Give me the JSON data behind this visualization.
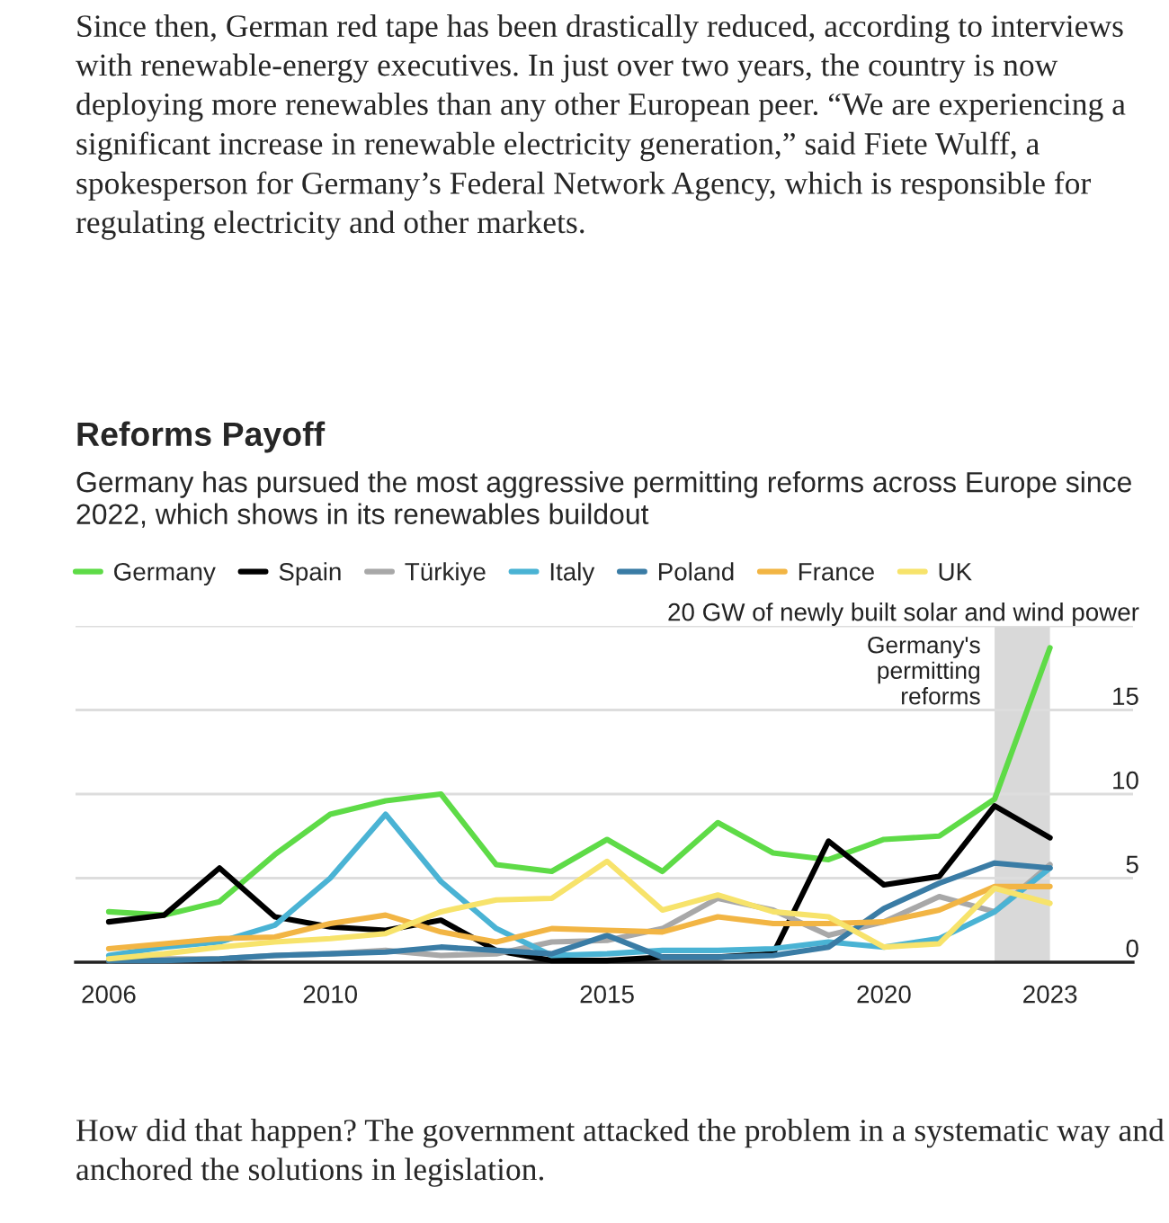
{
  "chart_data": {
    "type": "line",
    "title": "Reforms Payoff",
    "subtitle": "Germany has pursued the most aggressive permitting reforms across Europe since 2022, which shows in its renewables buildout",
    "annotations": [
      "Since then, German red tape has been drastically reduced, according to interviews with renewable-energy executives. In just over two years, the country is now deploying more renewables than any other European peer. “We are experiencing a significant increase in renewable electricity generation,” said Fiete Wulff, a spokesperson for Germany’s Federal Network Agency, which is responsible for regulating electricity and other markets.",
      "How did that happen? The government attacked the problem in a systematic way and anchored the solutions in legislation."
    ],
    "x": [
      2006,
      2007,
      2008,
      2009,
      2010,
      2011,
      2012,
      2013,
      2014,
      2015,
      2016,
      2017,
      2018,
      2019,
      2020,
      2021,
      2022,
      2023
    ],
    "series": [
      {
        "name": "Germany",
        "color": "#5edb47",
        "values": [
          3.0,
          2.8,
          3.6,
          6.4,
          8.8,
          9.6,
          10.0,
          5.8,
          5.4,
          7.3,
          5.4,
          8.3,
          6.5,
          6.1,
          7.3,
          7.5,
          9.7,
          18.7
        ]
      },
      {
        "name": "Spain",
        "color": "#000000",
        "values": [
          2.4,
          2.8,
          5.6,
          2.7,
          2.1,
          1.9,
          2.5,
          0.7,
          0.1,
          0.1,
          0.3,
          0.3,
          0.5,
          7.2,
          4.6,
          5.1,
          9.3,
          7.4
        ]
      },
      {
        "name": "Türkiye",
        "color": "#a8a8a8",
        "values": [
          0.1,
          0.2,
          0.2,
          0.4,
          0.5,
          0.7,
          0.4,
          0.5,
          1.2,
          1.3,
          2.0,
          3.8,
          3.1,
          1.6,
          2.4,
          3.9,
          3.0,
          5.8
        ]
      },
      {
        "name": "Italy",
        "color": "#4ab3d4",
        "values": [
          0.4,
          0.9,
          1.2,
          2.2,
          5.0,
          8.8,
          4.8,
          2.0,
          0.4,
          0.5,
          0.7,
          0.7,
          0.8,
          1.2,
          0.9,
          1.4,
          3.0,
          5.6
        ]
      },
      {
        "name": "Poland",
        "color": "#3a7ca5",
        "values": [
          0.1,
          0.1,
          0.2,
          0.4,
          0.5,
          0.6,
          0.9,
          0.7,
          0.5,
          1.6,
          0.3,
          0.3,
          0.4,
          0.9,
          3.2,
          4.7,
          5.9,
          5.6
        ]
      },
      {
        "name": "France",
        "color": "#f2b544",
        "values": [
          0.8,
          1.1,
          1.4,
          1.5,
          2.3,
          2.8,
          1.8,
          1.2,
          2.0,
          1.9,
          1.8,
          2.7,
          2.3,
          2.3,
          2.4,
          3.1,
          4.5,
          4.5
        ]
      },
      {
        "name": "UK",
        "color": "#f7e36b",
        "values": [
          0.2,
          0.5,
          0.9,
          1.2,
          1.4,
          1.7,
          3.0,
          3.7,
          3.8,
          6.0,
          3.1,
          4.0,
          3.0,
          2.7,
          0.9,
          1.1,
          4.4,
          3.5
        ]
      }
    ],
    "xlim": [
      2005.4,
      2024.5
    ],
    "xticks": [
      2006,
      2010,
      2015,
      2020,
      2023
    ],
    "ylim": [
      0,
      20
    ],
    "yticks": [
      0,
      5,
      10,
      15,
      {
        "value": 20,
        "label": "20 GW of newly built solar and wind power"
      }
    ],
    "bands": [
      {
        "axis": "x",
        "from": 2022,
        "to": 2023,
        "label": "Germany's\npermitting\nreforms",
        "color": "#d9d9d9"
      }
    ],
    "grid": "y",
    "legend": "top left",
    "marker": "none",
    "line_style": "solid"
  }
}
